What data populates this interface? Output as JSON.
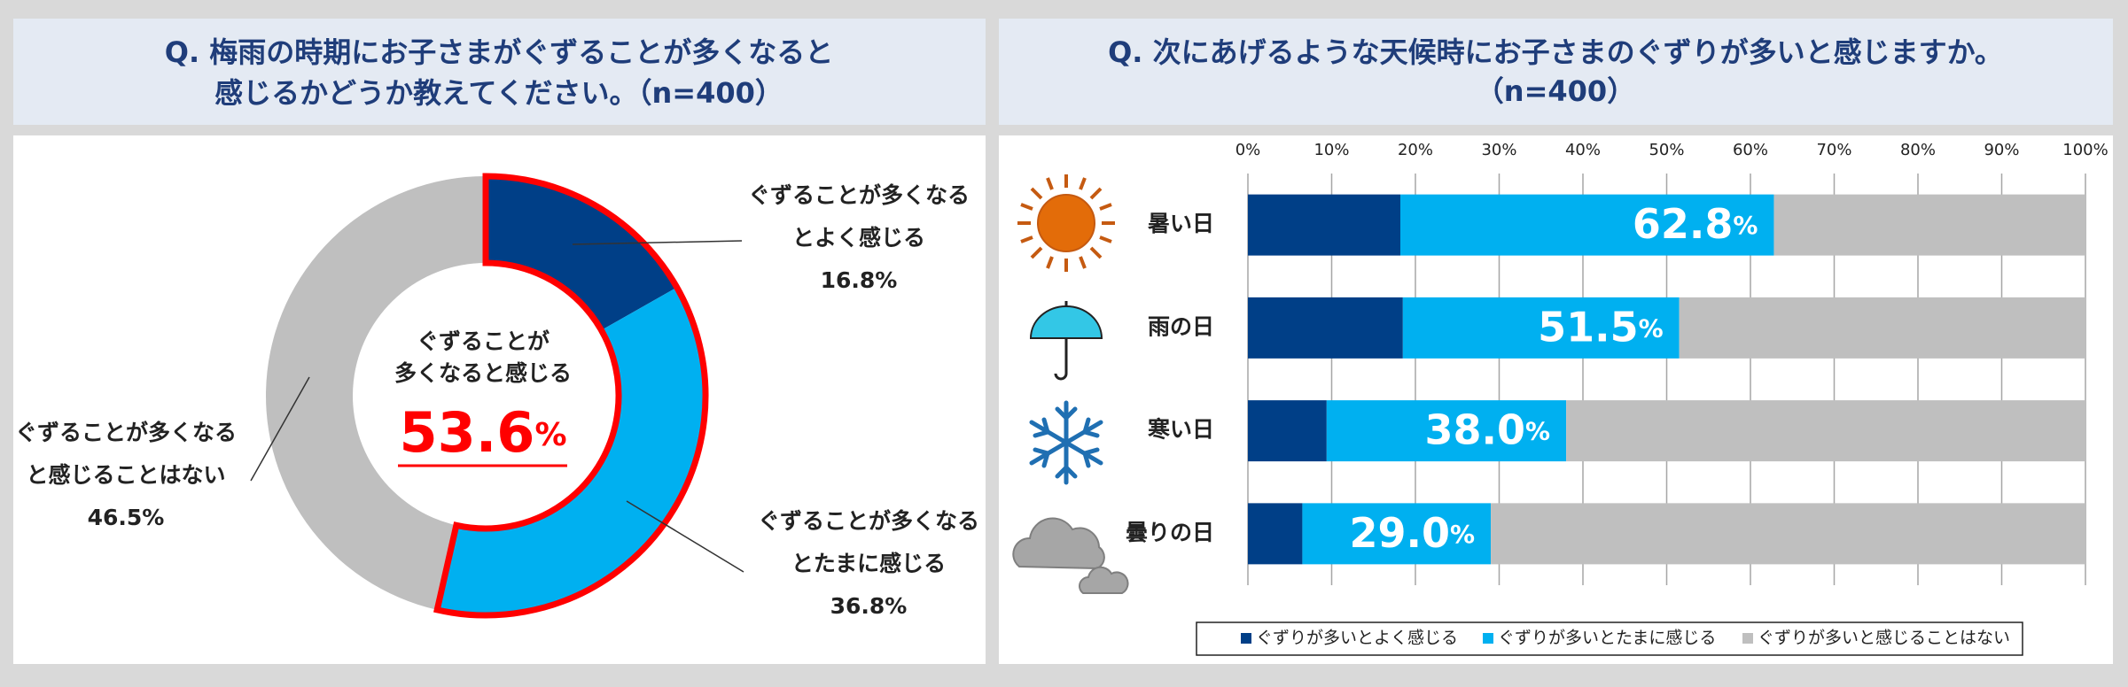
{
  "chart_data": [
    {
      "type": "donut",
      "title": [
        "Q. 梅雨の時期にお子さまがぐずることが多くなると",
        "感じるかどうか教えてください。（n=400）"
      ],
      "categories": [
        [
          "ぐずることが多くなる",
          "とよく感じる"
        ],
        [
          "ぐずることが多くなる",
          "とたまに感じる"
        ],
        [
          "ぐずることが多くなる",
          "と感じることはない"
        ]
      ],
      "values": [
        16.8,
        36.8,
        46.5
      ],
      "value_labels": [
        "16.8%",
        "36.8%",
        "46.5%"
      ],
      "colors": [
        "#003f87",
        "#00b0f0",
        "#bfbfbf"
      ],
      "center_label": [
        "ぐずることが",
        "多くなると感じる"
      ],
      "center_value": {
        "value": 53.6,
        "label": "53.6",
        "unit": "%"
      },
      "highlight_color": "#ff0000"
    },
    {
      "type": "stacked_bar_h",
      "title": [
        "Q. 次にあげるような天候時にお子さまのぐずりが多いと感じますか。",
        "（n=400）"
      ],
      "categories": [
        "暑い日",
        "雨の日",
        "寒い日",
        "曇りの日"
      ],
      "xlim": [
        0,
        100
      ],
      "xticks": [
        {
          "value": 0,
          "label": "0%"
        },
        {
          "value": 10,
          "label": "10%"
        },
        {
          "value": 20,
          "label": "20%"
        },
        {
          "value": 30,
          "label": "30%"
        },
        {
          "value": 40,
          "label": "40%"
        },
        {
          "value": 50,
          "label": "50%"
        },
        {
          "value": 60,
          "label": "60%"
        },
        {
          "value": 70,
          "label": "70%"
        },
        {
          "value": 80,
          "label": "80%"
        },
        {
          "value": 90,
          "label": "90%"
        },
        {
          "value": 100,
          "label": "100%"
        }
      ],
      "grid": true,
      "series": [
        {
          "name": "ぐずりが多いとよく感じる",
          "color": "#003f87",
          "values": [
            18.2,
            18.5,
            9.4,
            6.5
          ]
        },
        {
          "name": "ぐずりが多いとたまに感じる",
          "color": "#00b0f0",
          "values": [
            44.6,
            33.0,
            28.6,
            22.5
          ]
        },
        {
          "name": "ぐずりが多いと感じることはない",
          "color": "#bfbfbf",
          "values": [
            37.2,
            48.5,
            62.0,
            71.0
          ]
        }
      ],
      "totals": {
        "values": [
          62.8,
          51.5,
          38.0,
          29.0
        ],
        "value_labels": [
          "62.8",
          "51.5",
          "38.0",
          "29.0"
        ],
        "unit": "%"
      },
      "legend": "bottom"
    }
  ]
}
